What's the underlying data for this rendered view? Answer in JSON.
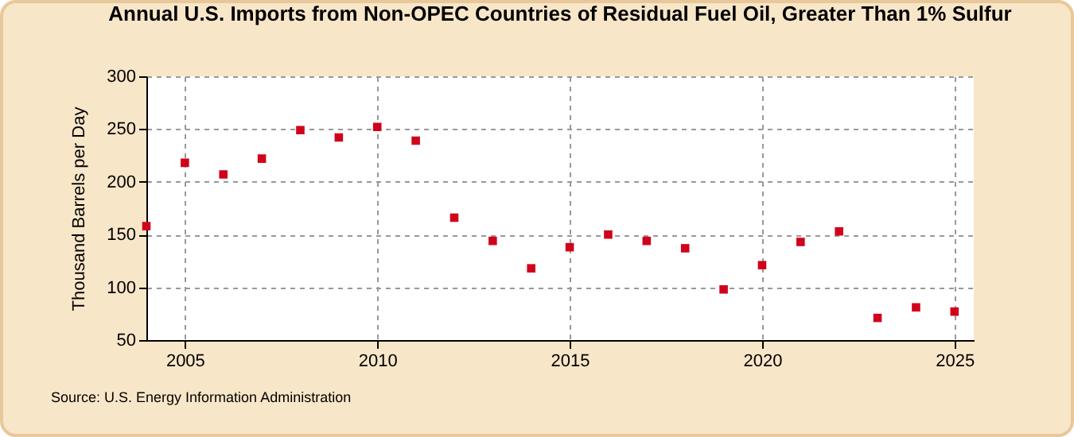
{
  "chart_data": {
    "type": "scatter",
    "title": "Annual U.S. Imports from Non-OPEC Countries of Residual Fuel Oil, Greater Than 1% Sulfur",
    "ylabel": "Thousand Barrels per Day",
    "annotations": [
      "Source: U.S. Energy Information Administration"
    ],
    "x": [
      2004,
      2005,
      2006,
      2007,
      2008,
      2009,
      2010,
      2011,
      2012,
      2013,
      2014,
      2015,
      2016,
      2017,
      2018,
      2019,
      2020,
      2021,
      2022,
      2023,
      2024,
      2025
    ],
    "values": [
      158,
      218,
      207,
      222,
      249,
      242,
      252,
      239,
      166,
      144,
      118,
      138,
      150,
      144,
      137,
      98,
      121,
      143,
      153,
      71,
      81,
      77
    ],
    "color": "#d0021b",
    "marker": "square",
    "xlim": [
      2004,
      2025.5
    ],
    "ylim": [
      50,
      300
    ],
    "xticks": [
      2005,
      2010,
      2015,
      2020,
      2025
    ],
    "yticks": [
      50,
      100,
      150,
      200,
      250,
      300
    ],
    "grid": true
  }
}
